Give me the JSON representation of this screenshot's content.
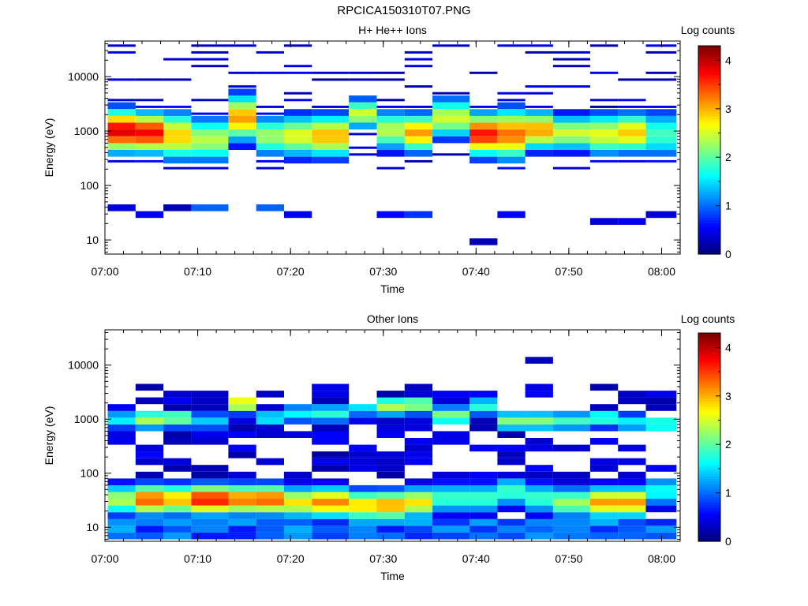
{
  "title": "RPCICA150310T07.PNG",
  "chart_data": [
    {
      "type": "heatmap",
      "title": "H+ He++ Ions",
      "xlabel": "Time",
      "ylabel": "Energy (eV)",
      "colorbar_label": "Log counts",
      "colorbar_range": [
        0,
        4.3
      ],
      "colorbar_ticks": [
        "0",
        "1",
        "2",
        "3",
        "4"
      ],
      "x_range": [
        "07:00",
        "08:02"
      ],
      "x_ticks": [
        "07:00",
        "07:10",
        "07:20",
        "07:30",
        "07:40",
        "07:50",
        "08:00"
      ],
      "y_log": true,
      "y_range": [
        5.5,
        45000
      ],
      "y_ticks": [
        "10",
        "100",
        "1000",
        "10000"
      ],
      "time_bins": [
        "07:00",
        "07:03",
        "07:06",
        "07:09",
        "07:13",
        "07:16",
        "07:19",
        "07:22",
        "07:26",
        "07:29",
        "07:32",
        "07:35",
        "07:39",
        "07:42",
        "07:45",
        "07:48",
        "07:52",
        "07:55",
        "07:58"
      ],
      "columns": [
        {
          "ridge_eV": 860,
          "peak": 3.9,
          "spread": 0.42,
          "low_eV": 30,
          "low_level": 0.25
        },
        {
          "ridge_eV": 800,
          "peak": 3.8,
          "spread": 0.4,
          "low_eV": 25,
          "low_level": 0.3
        },
        {
          "ridge_eV": 700,
          "peak": 2.9,
          "spread": 0.48,
          "low_eV": 33,
          "low_level": 0.1
        },
        {
          "ridge_eV": 600,
          "peak": 2.4,
          "spread": 0.45,
          "low_eV": 35,
          "low_level": 0.8
        },
        {
          "ridge_eV": 1500,
          "peak": 3.1,
          "spread": 0.45,
          "low_eV": 0,
          "low_level": 0
        },
        {
          "ridge_eV": 700,
          "peak": 2.3,
          "spread": 0.4,
          "low_eV": 38,
          "low_level": 0.8
        },
        {
          "ridge_eV": 700,
          "peak": 2.6,
          "spread": 0.42,
          "low_eV": 25,
          "low_level": 0.3
        },
        {
          "ridge_eV": 700,
          "peak": 3.0,
          "spread": 0.42,
          "low_eV": 0,
          "low_level": 0
        },
        {
          "ridge_eV": 1800,
          "peak": 2.5,
          "spread": 0.3,
          "low_eV": 0,
          "low_level": 0
        },
        {
          "ridge_eV": 900,
          "peak": 2.4,
          "spread": 0.4,
          "low_eV": 25,
          "low_level": 0.4
        },
        {
          "ridge_eV": 800,
          "peak": 3.1,
          "spread": 0.38,
          "low_eV": 25,
          "low_level": 0.6
        },
        {
          "ridge_eV": 1500,
          "peak": 2.5,
          "spread": 0.4,
          "low_eV": 0,
          "low_level": 0
        },
        {
          "ridge_eV": 750,
          "peak": 3.7,
          "spread": 0.42,
          "low_eV": 9,
          "low_level": 0.1
        },
        {
          "ridge_eV": 750,
          "peak": 3.3,
          "spread": 0.5,
          "low_eV": 25,
          "low_level": 0.4
        },
        {
          "ridge_eV": 900,
          "peak": 3.1,
          "spread": 0.38,
          "low_eV": 0,
          "low_level": 0
        },
        {
          "ridge_eV": 800,
          "peak": 2.5,
          "spread": 0.35,
          "low_eV": 0,
          "low_level": 0
        },
        {
          "ridge_eV": 750,
          "peak": 2.6,
          "spread": 0.42,
          "low_eV": 20,
          "low_level": 0.2
        },
        {
          "ridge_eV": 800,
          "peak": 2.9,
          "spread": 0.4,
          "low_eV": 20,
          "low_level": 0.3
        },
        {
          "ridge_eV": 750,
          "peak": 1.9,
          "spread": 0.48,
          "low_eV": 25,
          "low_level": 0.2
        }
      ]
    },
    {
      "type": "heatmap",
      "title": "Other Ions",
      "xlabel": "Time",
      "ylabel": "Energy (eV)",
      "colorbar_label": "Log counts",
      "colorbar_range": [
        0,
        4.3
      ],
      "colorbar_ticks": [
        "0",
        "1",
        "2",
        "3",
        "4"
      ],
      "x_range": [
        "07:00",
        "08:02"
      ],
      "x_ticks": [
        "07:00",
        "07:10",
        "07:20",
        "07:30",
        "07:40",
        "07:50",
        "08:00"
      ],
      "y_log": true,
      "y_range": [
        5.5,
        45000
      ],
      "y_ticks": [
        "10",
        "100",
        "1000",
        "10000"
      ],
      "time_bins": [
        "07:00",
        "07:03",
        "07:06",
        "07:09",
        "07:13",
        "07:16",
        "07:19",
        "07:22",
        "07:26",
        "07:29",
        "07:32",
        "07:35",
        "07:39",
        "07:42",
        "07:45",
        "07:48",
        "07:52",
        "07:55",
        "07:58"
      ],
      "columns": [
        {
          "low_peak_eV": 28,
          "low_peak": 2.4,
          "ridge_eV": 850,
          "ridge": 1.6,
          "top_eV": 1700
        },
        {
          "low_peak_eV": 28,
          "low_peak": 3.4,
          "ridge_eV": 850,
          "ridge": 2.4,
          "top_eV": 3500
        },
        {
          "low_peak_eV": 28,
          "low_peak": 3.0,
          "ridge_eV": 900,
          "ridge": 2.2,
          "top_eV": 4000
        },
        {
          "low_peak_eV": 28,
          "low_peak": 3.7,
          "ridge_eV": 800,
          "ridge": 1.4,
          "top_eV": 2800
        },
        {
          "low_peak_eV": 28,
          "low_peak": 3.3,
          "ridge_eV": 1700,
          "ridge": 2.8,
          "top_eV": 2000
        },
        {
          "low_peak_eV": 28,
          "low_peak": 3.4,
          "ridge_eV": 900,
          "ridge": 1.6,
          "top_eV": 2900
        },
        {
          "low_peak_eV": 25,
          "low_peak": 2.8,
          "ridge_eV": 1100,
          "ridge": 1.6,
          "top_eV": 1800
        },
        {
          "low_peak_eV": 25,
          "low_peak": 3.2,
          "ridge_eV": 1100,
          "ridge": 1.8,
          "top_eV": 4000
        },
        {
          "low_peak_eV": 22,
          "low_peak": 2.9,
          "ridge_eV": 1400,
          "ridge": 1.5,
          "top_eV": 1700
        },
        {
          "low_peak_eV": 22,
          "low_peak": 3.1,
          "ridge_eV": 1500,
          "ridge": 2.4,
          "top_eV": 3000
        },
        {
          "low_peak_eV": 25,
          "low_peak": 2.8,
          "ridge_eV": 1600,
          "ridge": 2.3,
          "top_eV": 3500
        },
        {
          "low_peak_eV": 30,
          "low_peak": 1.9,
          "ridge_eV": 1000,
          "ridge": 2.2,
          "top_eV": 3300
        },
        {
          "low_peak_eV": 30,
          "low_peak": 1.9,
          "ridge_eV": 1500,
          "ridge": 1.8,
          "top_eV": 3000
        },
        {
          "low_peak_eV": 40,
          "low_peak": 1.9,
          "ridge_eV": 800,
          "ridge": 2.2,
          "top_eV": 1700
        },
        {
          "low_peak_eV": 30,
          "low_peak": 1.9,
          "ridge_eV": 800,
          "ridge": 2.2,
          "top_eV": 17000
        },
        {
          "low_peak_eV": 25,
          "low_peak": 2.3,
          "ridge_eV": 800,
          "ridge": 1.9,
          "top_eV": 1600
        },
        {
          "low_peak_eV": 25,
          "low_peak": 3.1,
          "ridge_eV": 900,
          "ridge": 1.9,
          "top_eV": 3500
        },
        {
          "low_peak_eV": 25,
          "low_peak": 3.1,
          "ridge_eV": 750,
          "ridge": 1.6,
          "top_eV": 3000
        },
        {
          "low_peak_eV": 40,
          "low_peak": 1.7,
          "ridge_eV": 700,
          "ridge": 1.9,
          "top_eV": 3200
        }
      ]
    }
  ]
}
